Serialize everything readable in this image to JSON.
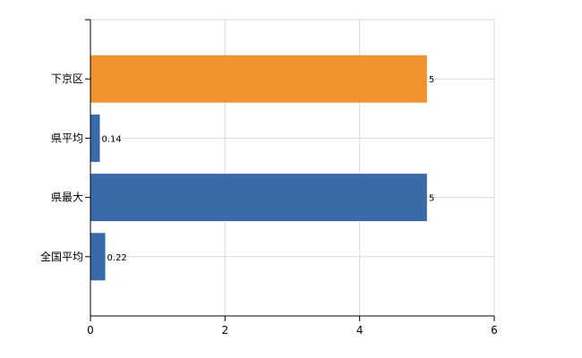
{
  "chart_data": {
    "type": "bar",
    "orientation": "horizontal",
    "categories": [
      "下京区",
      "県平均",
      "県最大",
      "全国平均"
    ],
    "values": [
      5,
      0.14,
      5,
      0.22
    ],
    "data_labels": [
      "5",
      "0.14",
      "5",
      "0.22"
    ],
    "bar_colors": [
      "#f0922e",
      "#3a6aa8",
      "#3a6aa8",
      "#3a6aa8"
    ],
    "xlim": [
      0,
      6
    ],
    "x_ticks": [
      0,
      2,
      4,
      6
    ],
    "grid": true,
    "title": "",
    "xlabel": "",
    "ylabel": ""
  }
}
